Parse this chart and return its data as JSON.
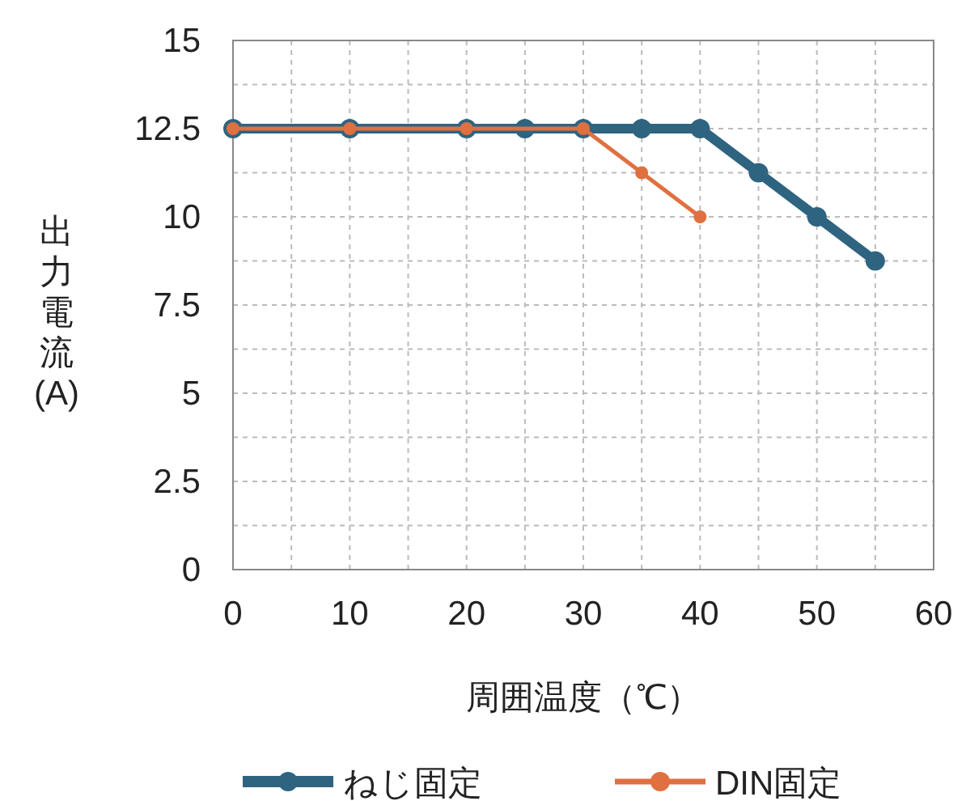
{
  "chart_data": {
    "type": "line",
    "xlabel": "周囲温度（℃）",
    "ylabel": "出力電流(A)",
    "xlim": [
      0,
      60
    ],
    "ylim": [
      0,
      15
    ],
    "xticks": [
      0,
      {
        "value": 5,
        "label": null
      },
      10,
      {
        "value": 15,
        "label": null
      },
      20,
      {
        "value": 25,
        "label": null
      },
      30,
      {
        "value": 35,
        "label": null
      },
      40,
      {
        "value": 45,
        "label": null
      },
      50,
      {
        "value": 55,
        "label": null
      },
      60
    ],
    "yticks": [
      0,
      {
        "value": 1.25,
        "label": null
      },
      2.5,
      {
        "value": 3.75,
        "label": null
      },
      5,
      {
        "value": 6.25,
        "label": null
      },
      7.5,
      {
        "value": 8.75,
        "label": null
      },
      10,
      {
        "value": 11.25,
        "label": null
      },
      12.5,
      {
        "value": 13.75,
        "label": null
      },
      15
    ],
    "grid": true,
    "legend": "bottom",
    "marker": "circle",
    "line_style": "solid",
    "series": [
      {
        "name": "ねじ固定",
        "color": "#2e6480",
        "x": [
          0,
          10,
          20,
          25,
          30,
          35,
          40,
          45,
          50,
          55
        ],
        "values": [
          12.5,
          12.5,
          12.5,
          12.5,
          12.5,
          12.5,
          12.5,
          11.25,
          10,
          8.75
        ]
      },
      {
        "name": "DIN固定",
        "color": "#e07040",
        "x": [
          0,
          10,
          20,
          30,
          35,
          40
        ],
        "values": [
          12.5,
          12.5,
          12.5,
          12.5,
          11.25,
          10
        ]
      }
    ]
  }
}
